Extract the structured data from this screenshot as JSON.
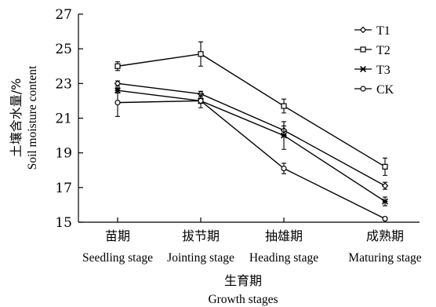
{
  "chart_data": {
    "type": "line",
    "categories": [
      {
        "cn": "苗期",
        "en": "Seedling stage"
      },
      {
        "cn": "拔节期",
        "en": "Jointing stage"
      },
      {
        "cn": "抽雄期",
        "en": "Heading stage"
      },
      {
        "cn": "成熟期",
        "en": "Maturing stage"
      }
    ],
    "xlabel_cn": "生育期",
    "xlabel_en": "Growth stages",
    "ylabel_cn": "土壤含水量/%",
    "ylabel_en": "Soil moisture content",
    "ylim": [
      15,
      27
    ],
    "yticks": [
      15,
      17,
      19,
      21,
      23,
      25,
      27
    ],
    "legend_position": "top-right",
    "series": [
      {
        "name": "T1",
        "marker": "diamond",
        "values": [
          23.0,
          22.4,
          20.3,
          17.1
        ],
        "errors": [
          0.15,
          0.15,
          0.25,
          0.2
        ]
      },
      {
        "name": "T2",
        "marker": "square",
        "values": [
          24.0,
          24.7,
          21.7,
          18.2
        ],
        "errors": [
          0.25,
          0.7,
          0.4,
          0.5
        ]
      },
      {
        "name": "T3",
        "marker": "cross",
        "values": [
          22.6,
          22.0,
          20.0,
          16.2
        ],
        "errors": [
          0.15,
          0.4,
          0.8,
          0.25
        ]
      },
      {
        "name": "CK",
        "marker": "circle",
        "values": [
          21.9,
          22.0,
          18.1,
          15.2
        ],
        "errors": [
          0.8,
          0.15,
          0.3,
          0.1
        ]
      }
    ]
  }
}
